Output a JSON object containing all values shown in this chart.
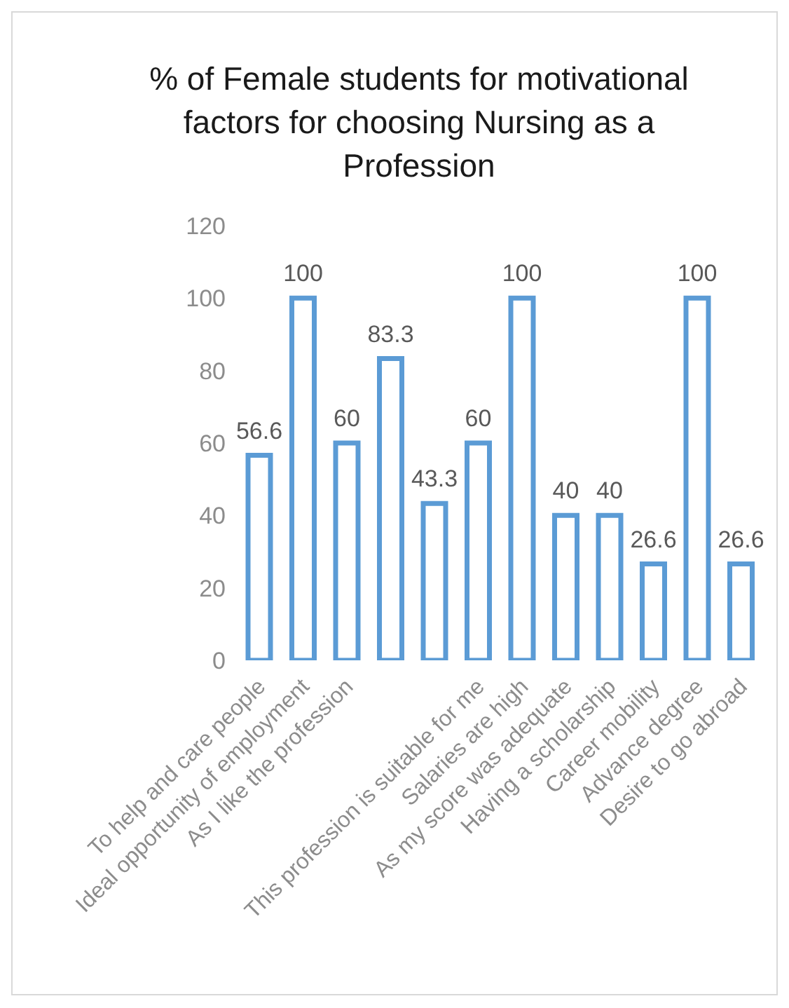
{
  "chart_data": {
    "type": "bar",
    "title": "% of Female students for motivational factors for choosing Nursing as a Profession",
    "categories": [
      "To help and care people",
      "Ideal opportunity of employment",
      "As I like the profession",
      null,
      null,
      "This profession is suitable for me",
      "Salaries are high",
      "As my score was adequate",
      "Having a scholarship",
      "Career mobility",
      "Advance degree",
      "Desire to go abroad"
    ],
    "values": [
      56.6,
      100,
      60,
      83.3,
      43.3,
      60,
      100,
      40,
      40,
      26.6,
      100,
      26.6
    ],
    "color": "#5b9bd5",
    "ylim": [
      0,
      120
    ],
    "yticks": [
      0,
      20,
      40,
      60,
      80,
      100,
      120
    ],
    "grid": false,
    "legend": false,
    "data_labels": true
  }
}
